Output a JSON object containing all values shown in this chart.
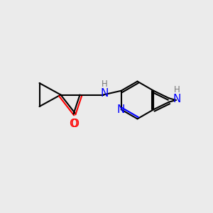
{
  "bg_color": "#ebebeb",
  "bond_color": "#000000",
  "N_color": "#0000ff",
  "O_color": "#ff0000",
  "lw": 1.5,
  "xlim": [
    0,
    10
  ],
  "ylim": [
    0,
    10
  ],
  "figsize": [
    3.0,
    3.0
  ],
  "dpi": 100
}
